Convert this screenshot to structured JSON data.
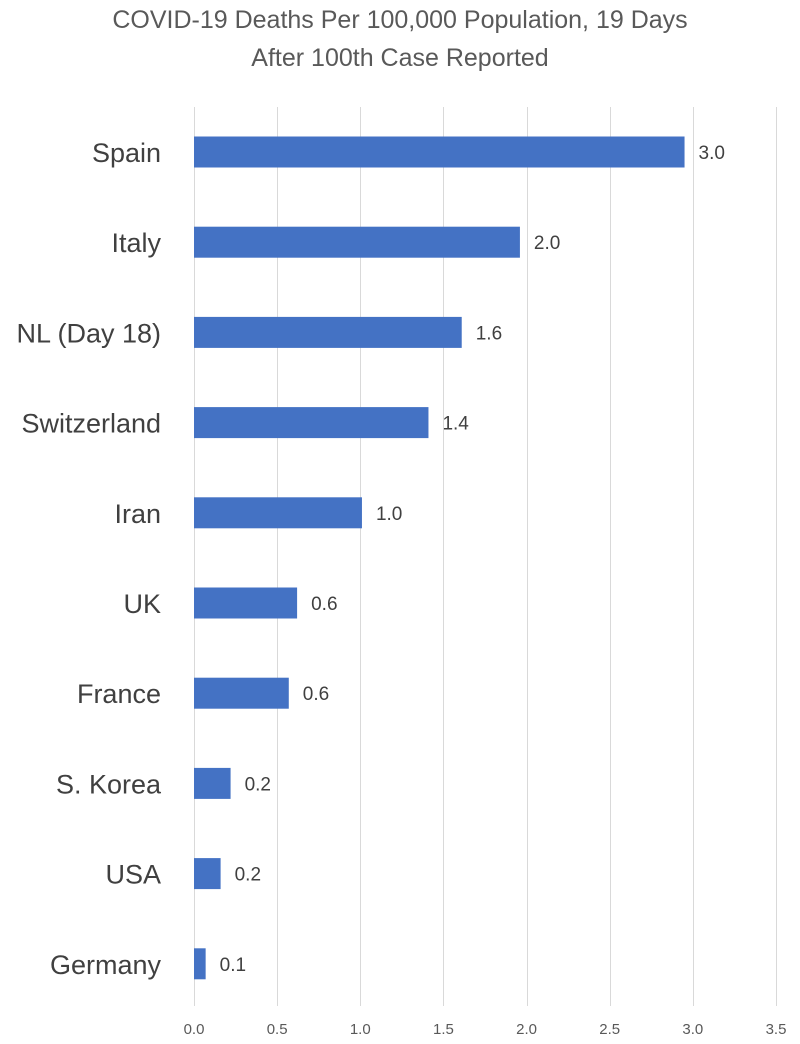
{
  "chart_data": {
    "type": "bar",
    "orientation": "horizontal",
    "title_lines": [
      "COVID-19 Deaths Per 100,000 Population, 19 Days",
      "After 100th Case Reported"
    ],
    "categories": [
      "Spain",
      "Italy",
      "NL (Day 18)",
      "Switzerland",
      "Iran",
      "UK",
      "France",
      "S. Korea",
      "USA",
      "Germany"
    ],
    "values": [
      2.95,
      1.96,
      1.61,
      1.41,
      1.01,
      0.62,
      0.57,
      0.22,
      0.16,
      0.07
    ],
    "value_labels": [
      "3.0",
      "2.0",
      "1.6",
      "1.4",
      "1.0",
      "0.6",
      "0.6",
      "0.2",
      "0.2",
      "0.1"
    ],
    "xlim": [
      0,
      3.5
    ],
    "xticks": [
      0,
      0.5,
      1.0,
      1.5,
      2.0,
      2.5,
      3.0,
      3.5
    ],
    "xtick_labels": [
      "0.0",
      "0.5",
      "1.0",
      "1.5",
      "2.0",
      "2.5",
      "3.0",
      "3.5"
    ],
    "xlabel": "",
    "ylabel": "",
    "grid": "vertical",
    "legend": "none",
    "bar_color": "#4472C4",
    "grid_color": "#D9D9D9",
    "text_color": "#404040"
  }
}
